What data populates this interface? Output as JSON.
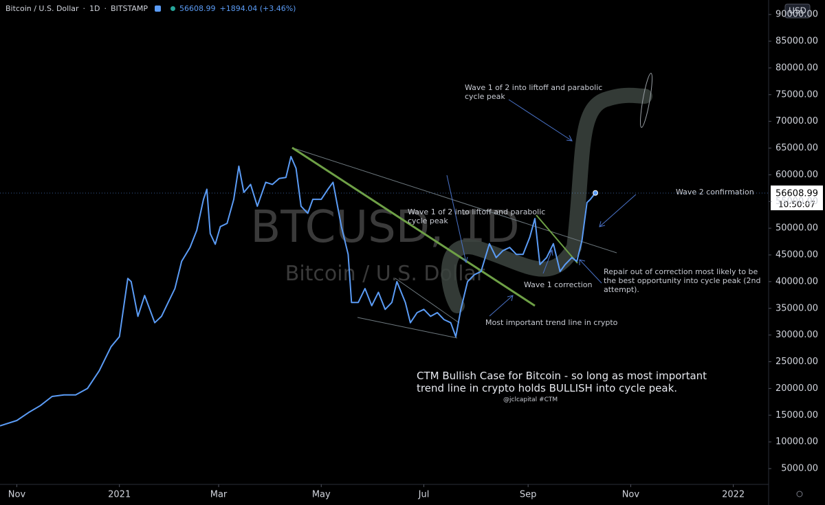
{
  "header": {
    "symbol": "Bitcoin / U.S. Dollar",
    "interval": "1D",
    "exchange": "BITSTAMP",
    "price": "56608.99",
    "change": "+1894.04 (+3.46%)"
  },
  "watermark": {
    "symbol": "BTCUSD, 1D",
    "name": "Bitcoin / U.S. Dollar"
  },
  "price_tag": {
    "price": "56608.99",
    "countdown": "10:50:07"
  },
  "currency": "USD",
  "chart_data": {
    "type": "line",
    "x": [
      "2020-10-22",
      "2020-11-01",
      "2020-11-08",
      "2020-11-15",
      "2020-11-22",
      "2020-11-29",
      "2020-12-06",
      "2020-12-13",
      "2020-12-20",
      "2020-12-27",
      "2021-01-01",
      "2021-01-06",
      "2021-01-08",
      "2021-01-12",
      "2021-01-16",
      "2021-01-22",
      "2021-01-26",
      "2021-01-30",
      "2021-02-03",
      "2021-02-07",
      "2021-02-12",
      "2021-02-16",
      "2021-02-20",
      "2021-02-22",
      "2021-02-24",
      "2021-02-27",
      "2021-03-02",
      "2021-03-06",
      "2021-03-10",
      "2021-03-13",
      "2021-03-16",
      "2021-03-20",
      "2021-03-24",
      "2021-03-29",
      "2021-04-02",
      "2021-04-06",
      "2021-04-10",
      "2021-04-13",
      "2021-04-16",
      "2021-04-19",
      "2021-04-23",
      "2021-04-26",
      "2021-05-01",
      "2021-05-05",
      "2021-05-08",
      "2021-05-13",
      "2021-05-17",
      "2021-05-19",
      "2021-05-23",
      "2021-05-27",
      "2021-05-31",
      "2021-06-04",
      "2021-06-08",
      "2021-06-12",
      "2021-06-15",
      "2021-06-20",
      "2021-06-23",
      "2021-06-27",
      "2021-07-01",
      "2021-07-05",
      "2021-07-09",
      "2021-07-13",
      "2021-07-17",
      "2021-07-20",
      "2021-07-23",
      "2021-07-27",
      "2021-07-31",
      "2021-08-04",
      "2021-08-09",
      "2021-08-13",
      "2021-08-17",
      "2021-08-21",
      "2021-08-25",
      "2021-08-29",
      "2021-09-02",
      "2021-09-05",
      "2021-09-08",
      "2021-09-12",
      "2021-09-16",
      "2021-09-20",
      "2021-09-23",
      "2021-09-27",
      "2021-09-30",
      "2021-10-03",
      "2021-10-06",
      "2021-10-08",
      "2021-10-11"
    ],
    "series": [
      {
        "color": "#5b9cf6",
        "values": [
          13000,
          14000,
          15500,
          16800,
          18500,
          18800,
          18800,
          20000,
          23300,
          27800,
          29700,
          40600,
          40000,
          33500,
          37400,
          32300,
          33500,
          36100,
          38700,
          43800,
          46400,
          49600,
          55400,
          57300,
          49000,
          47000,
          50300,
          50900,
          55400,
          61600,
          56700,
          58200,
          54100,
          58600,
          58200,
          59300,
          59500,
          63400,
          61200,
          54100,
          52800,
          55400,
          55400,
          57300,
          58600,
          50300,
          45100,
          36100,
          36100,
          38700,
          35500,
          38000,
          34800,
          36100,
          40000,
          36100,
          32300,
          34200,
          34800,
          33500,
          34200,
          32900,
          32300,
          29700,
          34800,
          40000,
          41300,
          41900,
          47100,
          44500,
          45800,
          46400,
          45100,
          45100,
          48300,
          51800,
          43200,
          44500,
          47100,
          41900,
          43200,
          44500,
          43800,
          47700,
          54800,
          55400,
          56608.99
        ]
      }
    ],
    "xlim": [
      "2020-10-22",
      "2022-01-22"
    ],
    "xticks": [
      {
        "value": "2020-11-01",
        "label": "Nov"
      },
      {
        "value": "2021-01-01",
        "label": "2021"
      },
      {
        "value": "2021-03-01",
        "label": "Mar"
      },
      {
        "value": "2021-05-01",
        "label": "May"
      },
      {
        "value": "2021-07-01",
        "label": "Jul"
      },
      {
        "value": "2021-09-01",
        "label": "Sep"
      },
      {
        "value": "2021-11-01",
        "label": "Nov"
      },
      {
        "value": "2022-01-01",
        "label": "2022"
      }
    ],
    "ylim": [
      2042,
      92717
    ],
    "yticks": [
      {
        "value": 5000,
        "label": "5000.00"
      },
      {
        "value": 10000,
        "label": "10000.00"
      },
      {
        "value": 15000,
        "label": "15000.00"
      },
      {
        "value": 20000,
        "label": "20000.00"
      },
      {
        "value": 25000,
        "label": "25000.00"
      },
      {
        "value": 30000,
        "label": "30000.00"
      },
      {
        "value": 35000,
        "label": "35000.00"
      },
      {
        "value": 40000,
        "label": "40000.00"
      },
      {
        "value": 45000,
        "label": "45000.00"
      },
      {
        "value": 50000,
        "label": "50000.00"
      },
      {
        "value": 55000,
        "label": "55000.00"
      },
      {
        "value": 60000,
        "label": "60000.00"
      },
      {
        "value": 65000,
        "label": "65000.00"
      },
      {
        "value": 70000,
        "label": "70000.00"
      },
      {
        "value": 75000,
        "label": "75000.00"
      },
      {
        "value": 80000,
        "label": "80000.00"
      },
      {
        "value": 85000,
        "label": "85000.00"
      },
      {
        "value": 90000,
        "label": "90000.00"
      }
    ],
    "grid": false,
    "annotations": [
      "Wave 1 of 2 into liftoff and parabolic cycle peak",
      "Wave 1 of 2 into liftoff and parabolic cycle peak",
      "Wave 2 confirmation",
      "Repair out of correction most likely to be the best opportunity into cycle peak (2nd attempt).",
      "Wave 1 correction",
      "Most important trend line in crypto",
      "CTM Bullish Case for Bitcoin - so long as most important trend line in crypto holds BULLISH into cycle peak.",
      "@jclcapital #CTM"
    ]
  }
}
